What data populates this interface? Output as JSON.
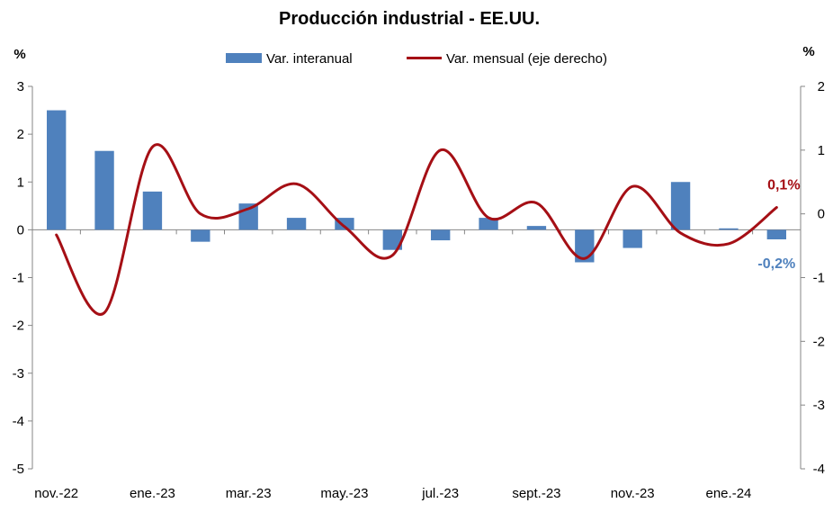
{
  "chart_data": {
    "type": "bar",
    "title": "Producción industrial - EE.UU.",
    "ylabel_left": "%",
    "ylabel_right": "%",
    "ylim_left": [
      -5,
      3
    ],
    "ylim_right": [
      -4,
      2
    ],
    "left_ticks": [
      "3",
      "2",
      "1",
      "0",
      "-1",
      "-2",
      "-3",
      "-4",
      "-5"
    ],
    "right_ticks": [
      "2",
      "1",
      "0",
      "-1",
      "-2",
      "-3",
      "-4"
    ],
    "x_tick_labels": [
      "nov.-22",
      "ene.-23",
      "mar.-23",
      "may.-23",
      "jul.-23",
      "sept.-23",
      "nov.-23",
      "ene.-24"
    ],
    "months": [
      "nov.-22",
      "dic.-22",
      "ene.-23",
      "feb.-23",
      "mar.-23",
      "abr.-23",
      "may.-23",
      "jun.-23",
      "jul.-23",
      "ago.-23",
      "sept.-23",
      "oct.-23",
      "nov.-23",
      "dic.-23",
      "ene.-24",
      "feb.-24"
    ],
    "legend_position": "top",
    "grid": false,
    "series": [
      {
        "name": "Var. interanual",
        "type": "bar",
        "axis": "left",
        "color": "#4F81BD",
        "values": [
          2.5,
          1.65,
          0.8,
          -0.25,
          0.55,
          0.25,
          0.25,
          -0.42,
          -0.22,
          0.25,
          0.08,
          -0.68,
          -0.38,
          1.0,
          0.03,
          -0.2
        ]
      },
      {
        "name": "Var. mensual (eje derecho)",
        "type": "line",
        "axis": "right",
        "color": "#A50F15",
        "values": [
          -0.33,
          -1.55,
          1.05,
          0.0,
          0.08,
          0.47,
          -0.2,
          -0.65,
          1.0,
          -0.06,
          0.17,
          -0.7,
          0.43,
          -0.3,
          -0.47,
          0.1
        ]
      }
    ],
    "annotations": [
      {
        "text": "0,1%",
        "series": "Var. mensual (eje derecho)",
        "color": "#A50F15"
      },
      {
        "text": "-0,2%",
        "series": "Var. interanual",
        "color": "#4F81BD"
      }
    ]
  }
}
